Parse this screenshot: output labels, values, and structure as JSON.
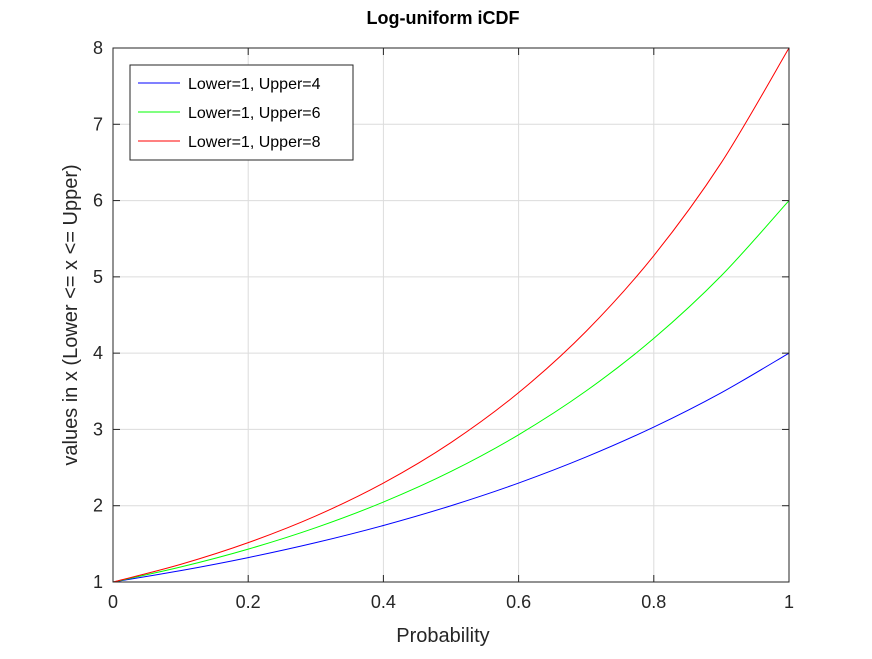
{
  "chart_data": {
    "type": "line",
    "title": "Log-uniform iCDF",
    "xlabel": "Probability",
    "ylabel": "values in x (Lower <= x <= Upper)",
    "xlim": [
      0,
      1
    ],
    "ylim": [
      1,
      8
    ],
    "xticks": [
      "0",
      "0.2",
      "0.4",
      "0.6",
      "0.8",
      "1"
    ],
    "xtick_values": [
      0,
      0.2,
      0.4,
      0.6,
      0.8,
      1
    ],
    "yticks": [
      "1",
      "2",
      "3",
      "4",
      "5",
      "6",
      "7",
      "8"
    ],
    "ytick_values": [
      1,
      2,
      3,
      4,
      5,
      6,
      7,
      8
    ],
    "grid": true,
    "legend_position": "top-left",
    "x": [
      0,
      0.1,
      0.2,
      0.3,
      0.4,
      0.5,
      0.6,
      0.7,
      0.8,
      0.9,
      1.0
    ],
    "series": [
      {
        "name": "Lower=1, Upper=4",
        "color": "#0000ff",
        "values": [
          1,
          1.149,
          1.32,
          1.516,
          1.741,
          2.0,
          2.297,
          2.639,
          3.031,
          3.482,
          4
        ]
      },
      {
        "name": "Lower=1, Upper=6",
        "color": "#00ff00",
        "values": [
          1,
          1.196,
          1.431,
          1.712,
          2.048,
          2.449,
          2.93,
          3.505,
          4.193,
          5.016,
          6
        ]
      },
      {
        "name": "Lower=1, Upper=8",
        "color": "#ff0000",
        "values": [
          1,
          1.231,
          1.516,
          1.866,
          2.297,
          2.828,
          3.482,
          4.287,
          5.278,
          6.498,
          8
        ]
      }
    ]
  }
}
